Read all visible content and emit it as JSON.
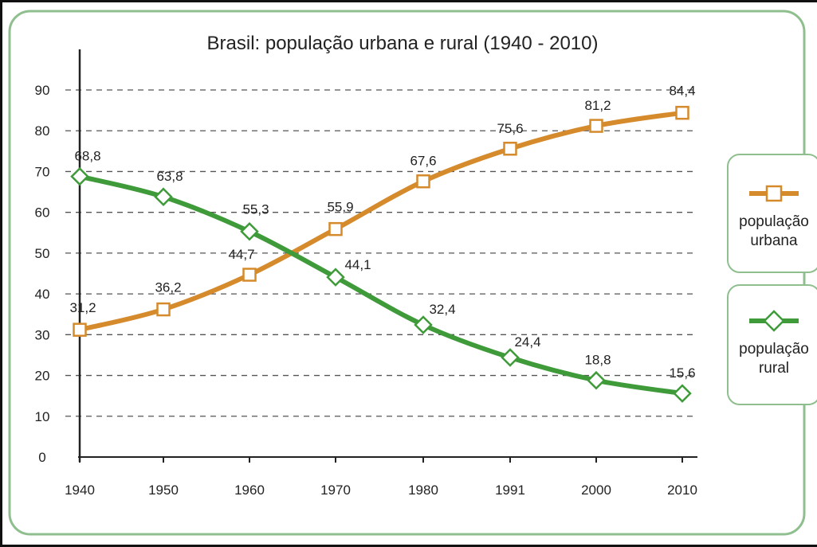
{
  "chart_data": {
    "type": "line",
    "title": "Brasil: população urbana e rural (1940 - 2010)",
    "xlabel": "",
    "ylabel": "",
    "categories": [
      "1940",
      "1950",
      "1960",
      "1970",
      "1980",
      "1991",
      "2000",
      "2010"
    ],
    "y_ticks": [
      "0",
      "10",
      "20",
      "30",
      "40",
      "50",
      "60",
      "70",
      "80",
      "90"
    ],
    "ylim": [
      0,
      90
    ],
    "grid": "horizontal dashed",
    "legend_position": "right",
    "series": [
      {
        "key": "urbana",
        "name_line1": "população",
        "name_line2": "urbana",
        "color": "#d58a2c",
        "marker": "square",
        "values": [
          31.2,
          36.2,
          44.7,
          55.9,
          67.6,
          75.6,
          81.2,
          84.4
        ],
        "labels": [
          "31,2",
          "36,2",
          "44,7",
          "55,9",
          "67,6",
          "75,6",
          "81,2",
          "84,4"
        ]
      },
      {
        "key": "rural",
        "name_line1": "população",
        "name_line2": "rural",
        "color": "#3f9b3a",
        "marker": "diamond",
        "values": [
          68.8,
          63.8,
          55.3,
          44.1,
          32.4,
          24.4,
          18.8,
          15.6
        ],
        "labels": [
          "68,8",
          "63,8",
          "55,3",
          "44,1",
          "32,4",
          "24,4",
          "18,8",
          "15,6"
        ]
      }
    ]
  }
}
